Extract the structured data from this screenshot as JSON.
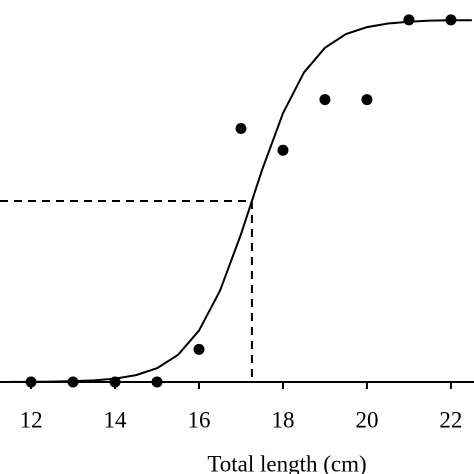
{
  "chart_data": {
    "type": "scatter",
    "x_label": "Total length (cm)",
    "xlim": [
      11.26,
      22.55
    ],
    "ylim": [
      0,
      1.055
    ],
    "xticks": [
      12,
      14,
      16,
      18,
      20,
      22
    ],
    "series": [
      {
        "type": "scatter",
        "color": "#000000",
        "x": [
          12,
          13,
          14,
          15,
          16,
          17,
          18,
          19,
          20,
          21,
          22
        ],
        "values": [
          0,
          0,
          0,
          0,
          0.09,
          0.7,
          0.64,
          0.78,
          0.78,
          1.0,
          1.0
        ]
      },
      {
        "type": "line",
        "color": "#000000",
        "x": [
          11.5,
          12,
          12.5,
          13,
          13.5,
          14,
          14.5,
          15,
          15.5,
          16,
          16.5,
          17,
          17.5,
          18,
          18.5,
          19,
          19.5,
          20,
          20.5,
          21,
          21.5,
          22,
          22.5
        ],
        "values": [
          0.0003,
          0.0005,
          0.0011,
          0.0023,
          0.0046,
          0.0093,
          0.019,
          0.038,
          0.075,
          0.142,
          0.252,
          0.408,
          0.585,
          0.742,
          0.855,
          0.923,
          0.961,
          0.98,
          0.99,
          0.995,
          0.998,
          0.999,
          0.999
        ]
      }
    ],
    "reference": {
      "x": 17.26,
      "y": 0.5
    }
  }
}
